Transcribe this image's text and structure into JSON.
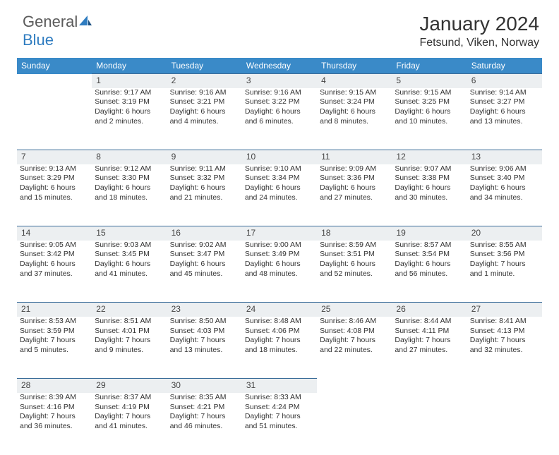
{
  "logo": {
    "line1": "General",
    "line2": "Blue"
  },
  "title": "January 2024",
  "location": "Fetsund, Viken, Norway",
  "header_bg": "#3a8ac8",
  "header_fg": "#ffffff",
  "daynum_bg": "#eceff1",
  "border_color": "#3a6c99",
  "text_color": "#333333",
  "font_family": "Arial, Helvetica, sans-serif",
  "weekdays": [
    "Sunday",
    "Monday",
    "Tuesday",
    "Wednesday",
    "Thursday",
    "Friday",
    "Saturday"
  ],
  "weeks": [
    {
      "nums": [
        "",
        "1",
        "2",
        "3",
        "4",
        "5",
        "6"
      ],
      "cells": [
        [],
        [
          "Sunrise: 9:17 AM",
          "Sunset: 3:19 PM",
          "Daylight: 6 hours",
          "and 2 minutes."
        ],
        [
          "Sunrise: 9:16 AM",
          "Sunset: 3:21 PM",
          "Daylight: 6 hours",
          "and 4 minutes."
        ],
        [
          "Sunrise: 9:16 AM",
          "Sunset: 3:22 PM",
          "Daylight: 6 hours",
          "and 6 minutes."
        ],
        [
          "Sunrise: 9:15 AM",
          "Sunset: 3:24 PM",
          "Daylight: 6 hours",
          "and 8 minutes."
        ],
        [
          "Sunrise: 9:15 AM",
          "Sunset: 3:25 PM",
          "Daylight: 6 hours",
          "and 10 minutes."
        ],
        [
          "Sunrise: 9:14 AM",
          "Sunset: 3:27 PM",
          "Daylight: 6 hours",
          "and 13 minutes."
        ]
      ]
    },
    {
      "nums": [
        "7",
        "8",
        "9",
        "10",
        "11",
        "12",
        "13"
      ],
      "cells": [
        [
          "Sunrise: 9:13 AM",
          "Sunset: 3:29 PM",
          "Daylight: 6 hours",
          "and 15 minutes."
        ],
        [
          "Sunrise: 9:12 AM",
          "Sunset: 3:30 PM",
          "Daylight: 6 hours",
          "and 18 minutes."
        ],
        [
          "Sunrise: 9:11 AM",
          "Sunset: 3:32 PM",
          "Daylight: 6 hours",
          "and 21 minutes."
        ],
        [
          "Sunrise: 9:10 AM",
          "Sunset: 3:34 PM",
          "Daylight: 6 hours",
          "and 24 minutes."
        ],
        [
          "Sunrise: 9:09 AM",
          "Sunset: 3:36 PM",
          "Daylight: 6 hours",
          "and 27 minutes."
        ],
        [
          "Sunrise: 9:07 AM",
          "Sunset: 3:38 PM",
          "Daylight: 6 hours",
          "and 30 minutes."
        ],
        [
          "Sunrise: 9:06 AM",
          "Sunset: 3:40 PM",
          "Daylight: 6 hours",
          "and 34 minutes."
        ]
      ]
    },
    {
      "nums": [
        "14",
        "15",
        "16",
        "17",
        "18",
        "19",
        "20"
      ],
      "cells": [
        [
          "Sunrise: 9:05 AM",
          "Sunset: 3:42 PM",
          "Daylight: 6 hours",
          "and 37 minutes."
        ],
        [
          "Sunrise: 9:03 AM",
          "Sunset: 3:45 PM",
          "Daylight: 6 hours",
          "and 41 minutes."
        ],
        [
          "Sunrise: 9:02 AM",
          "Sunset: 3:47 PM",
          "Daylight: 6 hours",
          "and 45 minutes."
        ],
        [
          "Sunrise: 9:00 AM",
          "Sunset: 3:49 PM",
          "Daylight: 6 hours",
          "and 48 minutes."
        ],
        [
          "Sunrise: 8:59 AM",
          "Sunset: 3:51 PM",
          "Daylight: 6 hours",
          "and 52 minutes."
        ],
        [
          "Sunrise: 8:57 AM",
          "Sunset: 3:54 PM",
          "Daylight: 6 hours",
          "and 56 minutes."
        ],
        [
          "Sunrise: 8:55 AM",
          "Sunset: 3:56 PM",
          "Daylight: 7 hours",
          "and 1 minute."
        ]
      ]
    },
    {
      "nums": [
        "21",
        "22",
        "23",
        "24",
        "25",
        "26",
        "27"
      ],
      "cells": [
        [
          "Sunrise: 8:53 AM",
          "Sunset: 3:59 PM",
          "Daylight: 7 hours",
          "and 5 minutes."
        ],
        [
          "Sunrise: 8:51 AM",
          "Sunset: 4:01 PM",
          "Daylight: 7 hours",
          "and 9 minutes."
        ],
        [
          "Sunrise: 8:50 AM",
          "Sunset: 4:03 PM",
          "Daylight: 7 hours",
          "and 13 minutes."
        ],
        [
          "Sunrise: 8:48 AM",
          "Sunset: 4:06 PM",
          "Daylight: 7 hours",
          "and 18 minutes."
        ],
        [
          "Sunrise: 8:46 AM",
          "Sunset: 4:08 PM",
          "Daylight: 7 hours",
          "and 22 minutes."
        ],
        [
          "Sunrise: 8:44 AM",
          "Sunset: 4:11 PM",
          "Daylight: 7 hours",
          "and 27 minutes."
        ],
        [
          "Sunrise: 8:41 AM",
          "Sunset: 4:13 PM",
          "Daylight: 7 hours",
          "and 32 minutes."
        ]
      ]
    },
    {
      "nums": [
        "28",
        "29",
        "30",
        "31",
        "",
        "",
        ""
      ],
      "cells": [
        [
          "Sunrise: 8:39 AM",
          "Sunset: 4:16 PM",
          "Daylight: 7 hours",
          "and 36 minutes."
        ],
        [
          "Sunrise: 8:37 AM",
          "Sunset: 4:19 PM",
          "Daylight: 7 hours",
          "and 41 minutes."
        ],
        [
          "Sunrise: 8:35 AM",
          "Sunset: 4:21 PM",
          "Daylight: 7 hours",
          "and 46 minutes."
        ],
        [
          "Sunrise: 8:33 AM",
          "Sunset: 4:24 PM",
          "Daylight: 7 hours",
          "and 51 minutes."
        ],
        [],
        [],
        []
      ]
    }
  ]
}
